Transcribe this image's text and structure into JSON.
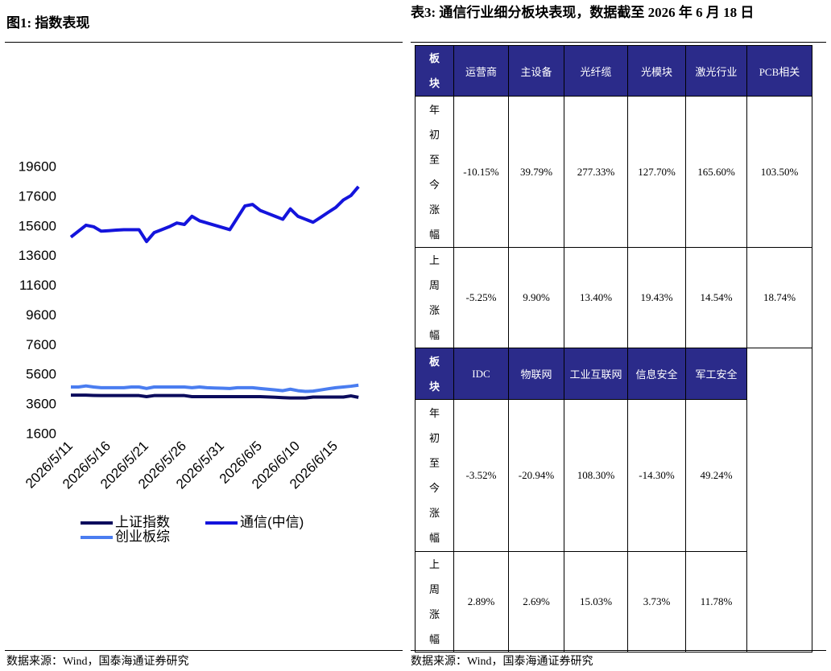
{
  "figure": {
    "title": "图1:  指数表现",
    "source": "数据来源：Wind，国泰海通证券研究"
  },
  "chart_data": {
    "type": "line",
    "categories": [
      "2026/5/11",
      null,
      null,
      null,
      null,
      "2026/5/16",
      null,
      null,
      null,
      null,
      "2026/5/21",
      null,
      null,
      null,
      null,
      "2026/5/26",
      null,
      null,
      null,
      null,
      "2026/5/31",
      null,
      null,
      null,
      null,
      "2026/6/5",
      null,
      null,
      null,
      null,
      "2026/6/10",
      null,
      null,
      null,
      null,
      "2026/6/15",
      null,
      null,
      null
    ],
    "series": [
      {
        "name": "上证指数",
        "color": "#0b0b5c",
        "values": [
          4250,
          4250,
          4250,
          4230,
          4220,
          4220,
          4220,
          4220,
          4220,
          4220,
          4150,
          4220,
          4220,
          4220,
          4220,
          4220,
          4150,
          4150,
          4150,
          4150,
          4150,
          4150,
          4150,
          4150,
          4150,
          4150,
          4130,
          4110,
          4080,
          4060,
          4060,
          4060,
          4120,
          4120,
          4120,
          4120,
          4120,
          4200,
          4100
        ]
      },
      {
        "name": "通信(中信)",
        "color": "#1414dc",
        "values": [
          14900,
          15300,
          15700,
          15600,
          15300,
          15330,
          15370,
          15400,
          15400,
          15400,
          14600,
          15200,
          15400,
          15600,
          15850,
          15750,
          16300,
          16000,
          15850,
          15700,
          15550,
          15400,
          16200,
          17000,
          17100,
          16700,
          16500,
          16300,
          16100,
          16800,
          16300,
          16100,
          15900,
          16230,
          16570,
          16900,
          17400,
          17700,
          18300
        ]
      },
      {
        "name": "创业板综",
        "color": "#4a7df0",
        "values": [
          4800,
          4800,
          4870,
          4800,
          4750,
          4750,
          4750,
          4750,
          4800,
          4800,
          4700,
          4800,
          4800,
          4800,
          4800,
          4800,
          4750,
          4800,
          4750,
          4730,
          4720,
          4700,
          4750,
          4750,
          4750,
          4700,
          4650,
          4600,
          4550,
          4650,
          4550,
          4500,
          4520,
          4600,
          4680,
          4750,
          4800,
          4850,
          4920
        ]
      }
    ],
    "ylim": [
      1600,
      19600
    ],
    "yticks": [
      1600,
      3600,
      5600,
      7600,
      9600,
      11600,
      13600,
      15600,
      17600,
      19600
    ]
  },
  "table": {
    "title": "表3:  通信行业细分板块表现，数据截至 2026 年 6 月 18 日",
    "source": "数据来源：Wind，国泰海通证券研究",
    "blocks": [
      {
        "header": [
          "板块",
          "运营商",
          "主设备",
          "光纤缆",
          "光模块",
          "激光行业",
          "PCB相关"
        ],
        "rows": [
          [
            "年初至今涨幅",
            "-10.15%",
            "39.79%",
            "277.33%",
            "127.70%",
            "165.60%",
            "103.50%"
          ],
          [
            "上周涨幅",
            "-5.25%",
            "9.90%",
            "13.40%",
            "19.43%",
            "14.54%",
            "18.74%"
          ]
        ]
      },
      {
        "header": [
          "板块",
          "IDC",
          "物联网",
          "工业互联网",
          "信息安全",
          "军工安全"
        ],
        "rows": [
          [
            "年初至今涨幅",
            "-3.52%",
            "-20.94%",
            "108.30%",
            "-14.30%",
            "49.24%"
          ],
          [
            "上周涨幅",
            "2.89%",
            "2.69%",
            "15.03%",
            "3.73%",
            "11.78%"
          ]
        ]
      }
    ]
  }
}
